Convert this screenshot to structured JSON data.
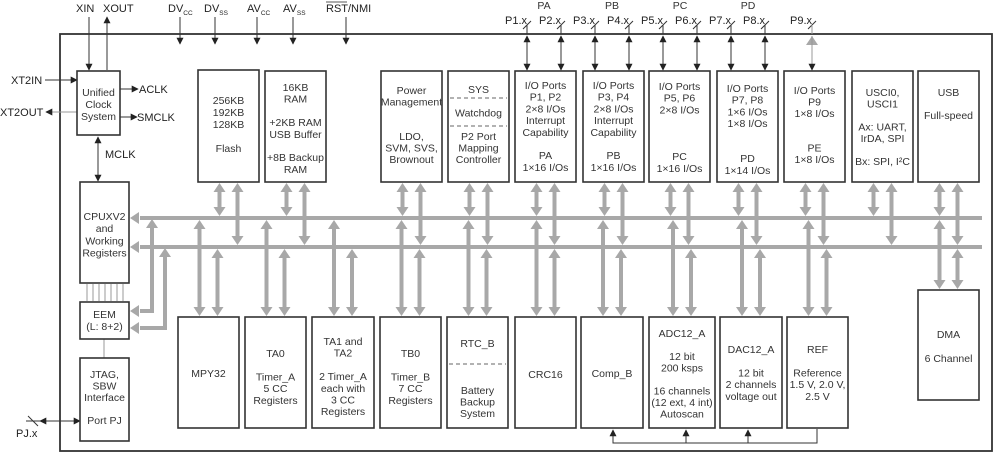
{
  "top_pins": {
    "xin": "XIN",
    "xout": "XOUT",
    "dvcc": {
      "main": "DV",
      "sub": "CC"
    },
    "dvss": {
      "main": "DV",
      "sub": "SS"
    },
    "avcc": {
      "main": "AV",
      "sub": "CC"
    },
    "avss": {
      "main": "AV",
      "sub": "SS"
    },
    "rst_overlined": "RST",
    "nmi": "/NMI"
  },
  "clock_labels": {
    "xt2in": "XT2IN",
    "xt2out": "XT2OUT",
    "aclk": "ACLK",
    "smclk": "SMCLK",
    "mclk": "MCLK"
  },
  "port_groups": [
    "PA",
    "PB",
    "PC",
    "PD"
  ],
  "port_pins": [
    "P1.x",
    "P2.x",
    "P3.x",
    "P4.x",
    "P5.x",
    "P6.x",
    "P7.x",
    "P8.x",
    "P9.x"
  ],
  "pj_label": "PJ.x",
  "blocks": {
    "ucs": {
      "lines": [
        "Unified",
        "Clock",
        "System"
      ]
    },
    "cpu": {
      "lines": [
        "CPUXV2",
        "and",
        "Working",
        "Registers"
      ]
    },
    "eem": {
      "lines": [
        "EEM",
        "(L: 8+2)"
      ]
    },
    "jtag": {
      "lines": [
        "JTAG,",
        "SBW",
        "Interface",
        "",
        "Port PJ"
      ]
    },
    "flash": {
      "lines": [
        "256KB",
        "192KB",
        "128KB",
        "",
        "Flash"
      ]
    },
    "ram": {
      "lines": [
        "16KB",
        "RAM",
        "",
        "+2KB RAM",
        "USB Buffer",
        "",
        "+8B Backup",
        "RAM"
      ]
    },
    "power": {
      "lines": [
        "Power",
        "Management",
        "",
        "",
        "LDO,",
        "SVM, SVS,",
        "Brownout"
      ]
    },
    "sys": {
      "lines": [
        "SYS",
        "",
        "Watchdog",
        "",
        "P2 Port",
        "Mapping",
        "Controller"
      ]
    },
    "pa": {
      "lines": [
        "I/O Ports",
        "P1, P2",
        "2×8 I/Os",
        "Interrupt",
        "Capability",
        "",
        "PA",
        "1×16 I/Os"
      ]
    },
    "pb": {
      "lines": [
        "I/O Ports",
        "P3, P4",
        "2×8 I/Os",
        "Interrupt",
        "Capability",
        "",
        "PB",
        "1×16 I/Os"
      ]
    },
    "pc": {
      "lines": [
        "I/O Ports",
        "P5, P6",
        "2×8 I/Os",
        "",
        "",
        "",
        "PC",
        "1×16 I/Os"
      ]
    },
    "pd": {
      "lines": [
        "I/O Ports",
        "P7, P8",
        "1×6 I/Os",
        "1×8 I/Os",
        "",
        "",
        "PD",
        "1×14 I/Os"
      ]
    },
    "pe": {
      "lines": [
        "I/O Ports",
        "P9",
        "1×8 I/Os",
        "",
        "",
        "PE",
        "1×8 I/Os"
      ]
    },
    "usci": {
      "lines": [
        "USCI0,",
        "USCI1",
        "",
        "Ax: UART,",
        "IrDA, SPI",
        "",
        "Bx: SPI, I²C"
      ]
    },
    "usb": {
      "lines": [
        "USB",
        "",
        "Full-speed"
      ]
    },
    "mpy": {
      "lines": [
        "MPY32"
      ]
    },
    "ta0": {
      "lines": [
        "TA0",
        "",
        "Timer_A",
        "5 CC",
        "Registers"
      ]
    },
    "ta12": {
      "lines": [
        "TA1 and",
        "TA2",
        "",
        "2 Timer_A",
        "each with",
        "3 CC",
        "Registers"
      ]
    },
    "tb0": {
      "lines": [
        "TB0",
        "",
        "Timer_B",
        "7 CC",
        "Registers"
      ]
    },
    "rtc": {
      "lines": [
        "RTC_B",
        "",
        "",
        "",
        "Battery",
        "Backup",
        "System"
      ]
    },
    "crc": {
      "lines": [
        "CRC16"
      ]
    },
    "comp": {
      "lines": [
        "Comp_B"
      ]
    },
    "adc": {
      "lines": [
        "ADC12_A",
        "",
        "12 bit",
        "200 ksps",
        "",
        "16 channels",
        "(12 ext, 4 int)",
        "Autoscan"
      ]
    },
    "dac": {
      "lines": [
        "DAC12_A",
        "",
        "12 bit",
        "2 channels",
        "voltage out"
      ]
    },
    "ref": {
      "lines": [
        "REF",
        "",
        "Reference",
        "1.5 V, 2.0 V,",
        "2.5 V"
      ]
    },
    "dma": {
      "lines": [
        "DMA",
        "",
        "6 Channel"
      ]
    }
  },
  "colors": {
    "block_border": "#333333",
    "bus_gray": "#a8a8a8",
    "text": "#333333"
  }
}
